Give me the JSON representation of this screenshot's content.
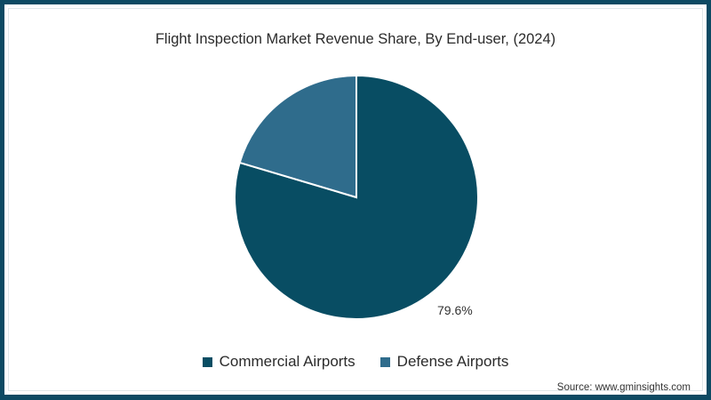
{
  "title": "Flight Inspection Market Revenue Share, By End-user, (2024)",
  "legend": [
    {
      "label": "Commercial Airports",
      "color": "#084d63"
    },
    {
      "label": "Defense Airports",
      "color": "#2f6c8c"
    }
  ],
  "labels": {
    "commercial_pct": "79.6%"
  },
  "source": "Source: www.gminsights.com",
  "colors": {
    "frame": "#0d4a63",
    "background": "#ffffff"
  },
  "chart_data": {
    "type": "pie",
    "title": "Flight Inspection Market Revenue Share, By End-user, (2024)",
    "categories": [
      "Commercial Airports",
      "Defense Airports"
    ],
    "values": [
      79.6,
      20.4
    ],
    "unit": "%",
    "data_labels": {
      "Commercial Airports": "79.6%"
    },
    "colors": [
      "#084d63",
      "#2f6c8c"
    ],
    "legend_position": "bottom",
    "start_angle": "12 o'clock, clockwise"
  }
}
